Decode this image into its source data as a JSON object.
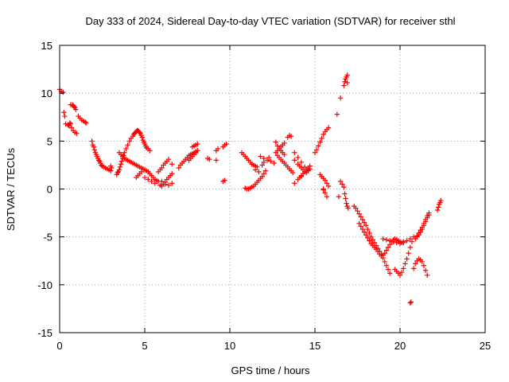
{
  "chart_data": {
    "type": "scatter",
    "title": "Day 333 of 2024, Sidereal Day-to-day VTEC variation (SDTVAR) for receiver sthl",
    "xlabel": "GPS time / hours",
    "ylabel": "SDTVAR / TECUs",
    "xlim": [
      0,
      25
    ],
    "ylim": [
      -15,
      15
    ],
    "xticks": [
      0,
      5,
      10,
      15,
      20,
      25
    ],
    "yticks": [
      -15,
      -10,
      -5,
      0,
      5,
      10,
      15
    ],
    "xtick_labels": [
      "0",
      "5",
      "10",
      "15",
      "20",
      "25"
    ],
    "ytick_labels": [
      "-15",
      "-10",
      "-5",
      "0",
      "5",
      "10",
      "15"
    ],
    "grid": true,
    "marker": "plus",
    "series": [
      {
        "name": "SDTVAR",
        "color": "#ff0000",
        "x": [
          0.0,
          0.1,
          0.2,
          0.25,
          0.3,
          0.35,
          0.5,
          0.55,
          0.65,
          0.75,
          0.8,
          0.85,
          0.9,
          0.95,
          0.7,
          0.8,
          0.9,
          1.0,
          0.6,
          0.65,
          1.1,
          1.2,
          1.3,
          1.4,
          1.5,
          1.55,
          1.9,
          1.95,
          2.0,
          2.05,
          2.1,
          2.15,
          2.2,
          2.25,
          2.3,
          2.35,
          2.4,
          2.45,
          2.5,
          2.6,
          2.7,
          2.8,
          2.9,
          3.0,
          3.0,
          3.05,
          3.35,
          3.4,
          3.45,
          3.5,
          3.55,
          3.6,
          3.65,
          3.7,
          3.75,
          3.8,
          3.9,
          4.0,
          4.1,
          4.2,
          4.3,
          4.35,
          4.4,
          4.45,
          4.5,
          4.55,
          4.6,
          4.65,
          4.7,
          4.75,
          4.8,
          4.85,
          4.9,
          4.95,
          5.0,
          5.05,
          5.1,
          5.2,
          5.3,
          3.5,
          3.6,
          3.7,
          3.8,
          3.9,
          4.0,
          4.1,
          4.2,
          4.3,
          4.4,
          4.5,
          4.6,
          4.7,
          4.8,
          4.9,
          5.0,
          5.1,
          5.2,
          5.3,
          5.4,
          5.5,
          5.6,
          5.7,
          5.8,
          4.5,
          4.6,
          4.7,
          4.8,
          5.0,
          5.2,
          5.4,
          5.6,
          5.9,
          6.0,
          6.1,
          6.2,
          6.3,
          6.4,
          6.5,
          6.6,
          5.8,
          5.9,
          6.0,
          6.1,
          6.2,
          6.3,
          6.4,
          6.6,
          6.0,
          6.2,
          6.4,
          6.6,
          7.0,
          7.1,
          7.2,
          7.3,
          7.4,
          7.5,
          7.6,
          7.7,
          7.8,
          7.9,
          8.0,
          8.1,
          7.6,
          7.7,
          7.8,
          7.9,
          8.0,
          8.1,
          7.8,
          7.9,
          8.0,
          8.1,
          8.7,
          8.8,
          9.2,
          9.3,
          9.2,
          9.6,
          9.7,
          9.8,
          9.6,
          9.7,
          10.7,
          10.8,
          10.9,
          11.0,
          11.1,
          11.2,
          11.3,
          11.4,
          11.5,
          11.6,
          10.9,
          11.0,
          11.1,
          11.2,
          11.3,
          11.4,
          11.5,
          11.6,
          11.7,
          11.8,
          11.9,
          12.0,
          12.1,
          11.3,
          11.5,
          11.7,
          11.9,
          12.0,
          12.3,
          11.8,
          12.0,
          12.2,
          12.4,
          12.6,
          12.7,
          12.8,
          12.9,
          13.0,
          13.1,
          13.2,
          12.7,
          12.8,
          12.9,
          13.0,
          13.1,
          13.2,
          12.8,
          12.9,
          13.0,
          13.1,
          13.2,
          13.3,
          13.4,
          13.5,
          13.6,
          13.7,
          13.4,
          13.5,
          13.6,
          13.8,
          14.0,
          14.2,
          14.4,
          14.6,
          13.8,
          14.0,
          14.1,
          14.2,
          14.3,
          14.4,
          14.5,
          14.6,
          14.7,
          14.1,
          14.2,
          14.3,
          14.4,
          14.5,
          14.6,
          14.7,
          13.8,
          14.0,
          14.2,
          15.0,
          15.1,
          15.2,
          15.3,
          15.4,
          15.5,
          15.6,
          15.7,
          15.8,
          15.3,
          15.4,
          15.5,
          15.6,
          15.7,
          15.8,
          15.5,
          15.6,
          15.7,
          15.5,
          16.3,
          16.5,
          16.7,
          16.75,
          16.8,
          16.85,
          16.9,
          16.9,
          16.5,
          16.6,
          16.7,
          16.75,
          16.8,
          16.85,
          16.9,
          16.95,
          16.4,
          17.3,
          17.4,
          17.5,
          17.6,
          17.7,
          17.8,
          17.9,
          18.0,
          18.1,
          18.2,
          18.3,
          18.4,
          18.5,
          18.6,
          18.7,
          18.8,
          18.9,
          19.0,
          19.1,
          19.2,
          19.3,
          19.4,
          17.6,
          17.7,
          17.8,
          17.9,
          18.0,
          18.1,
          18.2,
          18.3,
          18.4,
          18.5,
          18.6,
          18.7,
          18.8,
          18.9,
          19.0,
          19.1,
          19.2,
          19.3,
          19.4,
          19.5,
          19.6,
          19.7,
          19.8,
          19.9,
          20.0,
          20.1,
          20.2,
          19.0,
          19.2,
          19.4,
          19.6,
          19.8,
          20.0,
          20.2,
          20.4,
          20.6,
          20.8,
          19.7,
          19.8,
          19.9,
          20.0,
          20.1,
          20.2,
          20.3,
          20.4,
          20.5,
          20.6,
          20.7,
          20.6,
          20.65,
          20.8,
          20.9,
          21.0,
          21.1,
          21.2,
          21.3,
          21.4,
          21.5,
          21.6,
          20.9,
          21.0,
          21.1,
          21.2,
          21.3,
          21.4,
          21.5,
          21.6,
          21.7,
          21.0,
          21.1,
          21.2,
          21.3,
          21.4,
          21.5,
          21.6,
          21.7,
          22.2,
          22.25,
          22.3,
          22.35,
          22.4
        ],
        "y": [
          10.4,
          10.2,
          10.1,
          8.0,
          7.6,
          6.8,
          6.7,
          6.6,
          8.8,
          8.8,
          8.7,
          8.6,
          8.5,
          8.3,
          6.4,
          6.1,
          5.9,
          5.8,
          6.9,
          6.8,
          7.6,
          7.4,
          7.2,
          7.1,
          7.0,
          6.9,
          5.0,
          4.6,
          4.4,
          4.1,
          3.8,
          3.6,
          3.4,
          3.2,
          3.0,
          2.9,
          2.7,
          2.5,
          2.4,
          2.3,
          2.2,
          2.1,
          2.0,
          1.9,
          2.4,
          2.2,
          1.5,
          1.7,
          1.8,
          2.0,
          2.3,
          2.6,
          2.9,
          3.2,
          3.5,
          3.8,
          4.2,
          4.6,
          5.0,
          5.3,
          5.5,
          5.7,
          5.8,
          5.9,
          6.0,
          6.1,
          6.1,
          6.0,
          5.9,
          5.8,
          5.6,
          5.4,
          5.1,
          4.9,
          4.7,
          4.5,
          4.3,
          4.2,
          4.0,
          3.8,
          3.6,
          3.4,
          3.2,
          3.1,
          3.0,
          2.9,
          2.8,
          2.7,
          2.6,
          2.5,
          2.4,
          2.3,
          2.2,
          2.1,
          2.0,
          1.9,
          1.8,
          1.6,
          1.4,
          1.2,
          1.0,
          0.9,
          0.8,
          1.2,
          1.4,
          1.6,
          1.8,
          1.2,
          1.0,
          0.8,
          0.6,
          0.4,
          0.3,
          0.5,
          0.7,
          1.0,
          1.2,
          1.4,
          1.6,
          1.8,
          2.0,
          2.2,
          2.5,
          2.7,
          2.9,
          3.1,
          2.6,
          0.8,
          0.5,
          0.4,
          0.6,
          2.2,
          2.5,
          2.7,
          2.9,
          3.1,
          3.3,
          3.5,
          3.6,
          3.7,
          3.8,
          3.9,
          4.0,
          3.0,
          3.2,
          3.4,
          3.6,
          3.8,
          4.0,
          4.4,
          4.5,
          4.6,
          4.7,
          3.2,
          3.1,
          4.0,
          4.2,
          3.0,
          4.4,
          4.6,
          4.7,
          0.8,
          0.9,
          3.8,
          3.6,
          3.4,
          3.2,
          3.0,
          2.8,
          2.6,
          2.5,
          2.4,
          2.3,
          0.1,
          0.0,
          0.0,
          0.1,
          0.2,
          0.3,
          0.5,
          0.7,
          0.9,
          1.1,
          1.3,
          1.6,
          1.9,
          2.6,
          2.0,
          1.8,
          2.5,
          2.8,
          3.3,
          3.4,
          3.2,
          3.0,
          2.9,
          2.7,
          3.8,
          4.0,
          4.2,
          4.4,
          4.6,
          4.8,
          4.9,
          4.5,
          4.2,
          4.0,
          3.8,
          3.6,
          3.5,
          3.3,
          3.1,
          2.9,
          2.7,
          2.5,
          2.3,
          2.1,
          1.9,
          1.7,
          5.4,
          5.6,
          5.5,
          3.8,
          3.3,
          2.8,
          2.3,
          2.0,
          3.0,
          2.6,
          2.4,
          2.2,
          2.0,
          1.8,
          1.7,
          1.9,
          2.1,
          1.2,
          1.4,
          1.6,
          1.8,
          2.0,
          2.2,
          2.4,
          0.6,
          1.0,
          1.3,
          3.8,
          4.1,
          4.5,
          4.9,
          5.3,
          5.7,
          6.0,
          6.2,
          6.4,
          1.5,
          1.3,
          1.1,
          0.9,
          0.6,
          0.3,
          -0.1,
          -0.4,
          -0.8,
          0.0,
          7.8,
          9.5,
          10.8,
          11.2,
          11.5,
          11.7,
          11.9,
          11.1,
          0.8,
          0.5,
          0.2,
          -0.5,
          -1.0,
          -1.5,
          -1.8,
          -2.0,
          -0.8,
          -1.8,
          -2.0,
          -2.3,
          -2.6,
          -2.9,
          -3.2,
          -3.5,
          -3.8,
          -4.2,
          -4.6,
          -5.0,
          -5.3,
          -5.6,
          -5.9,
          -6.2,
          -6.5,
          -6.8,
          -7.2,
          -7.6,
          -8.0,
          -8.4,
          -8.8,
          -3.6,
          -3.9,
          -4.2,
          -4.5,
          -4.8,
          -5.1,
          -5.4,
          -5.7,
          -5.9,
          -6.1,
          -6.3,
          -6.5,
          -6.8,
          -7.0,
          -6.9,
          -6.7,
          -6.4,
          -6.1,
          -5.8,
          -5.5,
          -5.3,
          -5.2,
          -5.3,
          -5.4,
          -5.5,
          -5.6,
          -5.5,
          -5.2,
          -5.3,
          -5.4,
          -5.5,
          -5.6,
          -5.7,
          -5.6,
          -5.4,
          -5.2,
          -5.0,
          -8.4,
          -8.6,
          -8.8,
          -9.0,
          -8.7,
          -8.3,
          -7.8,
          -7.3,
          -6.7,
          -6.1,
          -5.5,
          -11.9,
          -11.8,
          -8.3,
          -7.8,
          -7.5,
          -7.3,
          -7.4,
          -7.6,
          -8.0,
          -8.5,
          -9.0,
          -5.2,
          -5.0,
          -4.8,
          -4.5,
          -4.2,
          -3.8,
          -3.4,
          -3.0,
          -2.7,
          -4.9,
          -4.6,
          -4.3,
          -4.0,
          -3.6,
          -3.2,
          -2.8,
          -2.5,
          -2.2,
          -1.9,
          -1.6,
          -1.4,
          -1.2
        ]
      }
    ]
  }
}
